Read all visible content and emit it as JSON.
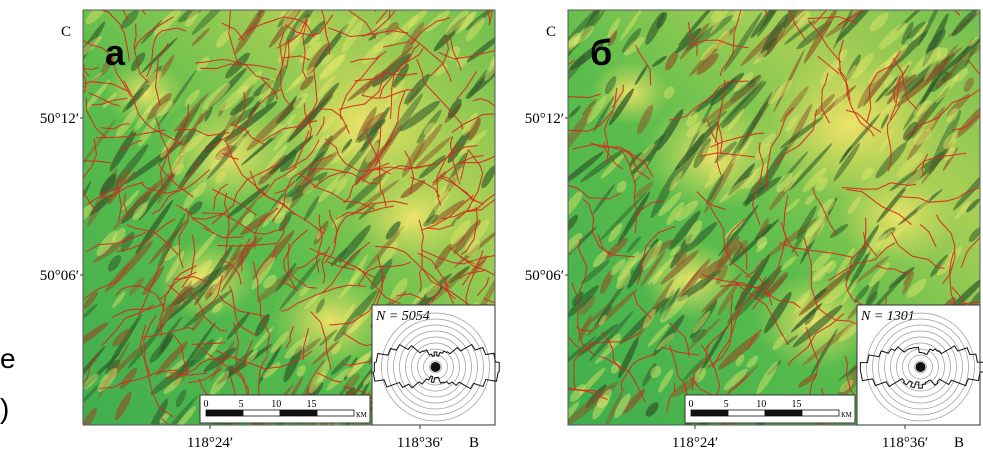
{
  "panels": [
    {
      "label": "а",
      "north": "С",
      "east": "В",
      "lat_labels": [
        "50°12′",
        "50°06′"
      ],
      "lon_labels": [
        "118°24′",
        "118°36′"
      ],
      "n_label": "N = 5054",
      "scale_ticks": [
        "0",
        "5",
        "10",
        "15"
      ],
      "scale_unit": "КМ"
    },
    {
      "label": "б",
      "north": "С",
      "east": "В",
      "lat_labels": [
        "50°12′",
        "50°06′"
      ],
      "lon_labels": [
        "118°24′",
        "118°36′"
      ],
      "n_label": "N = 1301",
      "scale_ticks": [
        "0",
        "5",
        "10",
        "15"
      ],
      "scale_unit": "КМ"
    }
  ],
  "edge_fragments": [
    "е",
    ")"
  ]
}
